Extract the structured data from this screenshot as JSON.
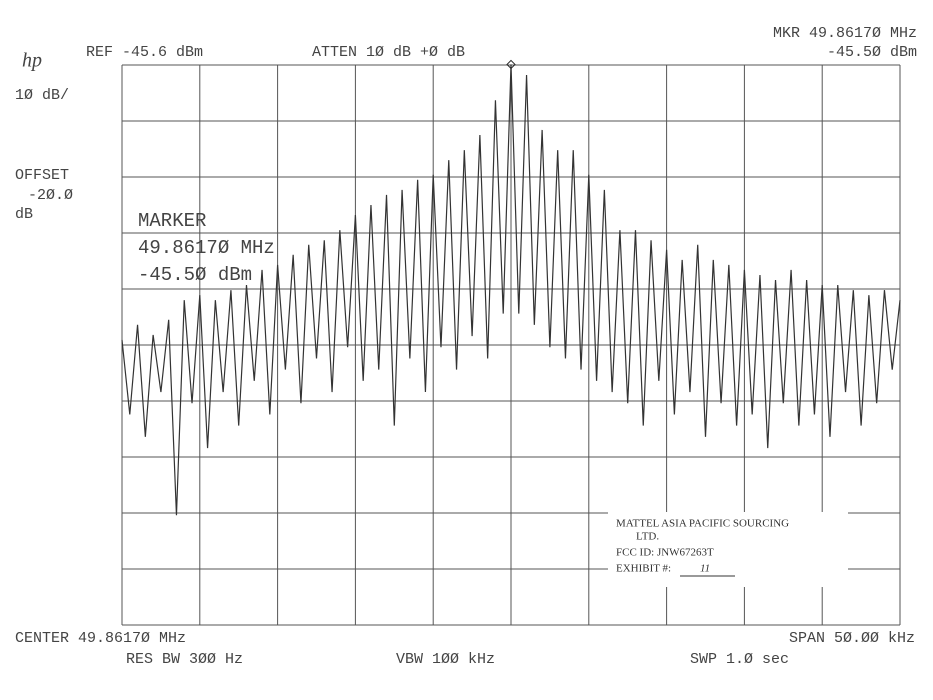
{
  "chart_data": {
    "type": "line",
    "logo": "hp",
    "reference": "REF -45.6 dBm",
    "attenuation": "ATTEN 1Ø dB +Ø dB",
    "marker_readout": "MKR 49.8617Ø MHz",
    "marker_level": "-45.5Ø dBm",
    "scale": "1Ø dB/",
    "offset_label": "OFFSET",
    "offset_value": "-2Ø.Ø",
    "offset_unit": "dB",
    "marker_title": "MARKER",
    "marker_freq": "49.8617Ø MHz",
    "marker_amp": "-45.5Ø dBm",
    "center": "CENTER 49.8617Ø MHz",
    "res_bw": "RES BW 3ØØ Hz",
    "vbw": "VBW 1ØØ kHz",
    "span": "SPAN 5Ø.ØØ kHz",
    "sweep": "SWP 1.Ø sec",
    "stamp": [
      "MATTEL ASIA PACIFIC SOURCING",
      "LTD.",
      "FCC ID: JNW67263T",
      "EXHIBIT #:",
      "11"
    ],
    "xlim": [
      49.8367,
      49.8867
    ],
    "ylim": [
      -145.6,
      -45.6
    ],
    "color": "#333333",
    "x": [
      49.8367,
      49.8372,
      49.8377,
      49.8382,
      49.8387,
      49.8392,
      49.8397,
      49.8402,
      49.8407,
      49.8412,
      49.8417,
      49.8422,
      49.8427,
      49.8432,
      49.8437,
      49.8442,
      49.8447,
      49.8452,
      49.8457,
      49.8462,
      49.8467,
      49.8472,
      49.8477,
      49.8482,
      49.8487,
      49.8492,
      49.8497,
      49.8502,
      49.8507,
      49.8512,
      49.8517,
      49.8522,
      49.8527,
      49.8532,
      49.8537,
      49.8542,
      49.8547,
      49.8552,
      49.8557,
      49.8562,
      49.8567,
      49.8572,
      49.8577,
      49.8582,
      49.8587,
      49.8592,
      49.8597,
      49.8602,
      49.8607,
      49.8612,
      49.8617,
      49.8622,
      49.8627,
      49.8632,
      49.8637,
      49.8642,
      49.8647,
      49.8652,
      49.8657,
      49.8662,
      49.8667,
      49.8672,
      49.8677,
      49.8682,
      49.8687,
      49.8692,
      49.8697,
      49.8702,
      49.8707,
      49.8712,
      49.8717,
      49.8722,
      49.8727,
      49.8732,
      49.8737,
      49.8742,
      49.8747,
      49.8752,
      49.8757,
      49.8762,
      49.8767,
      49.8772,
      49.8777,
      49.8782,
      49.8787,
      49.8792,
      49.8797,
      49.8802,
      49.8807,
      49.8812,
      49.8817,
      49.8822,
      49.8827,
      49.8832,
      49.8837,
      49.8842,
      49.8847,
      49.8852,
      49.8857,
      49.8862,
      49.8867
    ],
    "values": [
      -94.7,
      -108,
      -92.0,
      -112,
      -93.8,
      -104,
      -91.1,
      -126,
      -87.6,
      -106,
      -86.7,
      -114,
      -87.6,
      -104,
      -85.8,
      -110,
      -84.9,
      -102,
      -82.2,
      -108,
      -81.3,
      -100,
      -79.5,
      -106,
      -77.7,
      -98,
      -76.9,
      -104,
      -75.1,
      -96,
      -72.4,
      -102,
      -70.6,
      -100,
      -68.8,
      -110,
      -67.9,
      -98,
      -66.1,
      -104,
      -65.2,
      -96,
      -62.6,
      -100,
      -60.8,
      -94,
      -58.1,
      -98,
      -51.9,
      -90,
      -45.5,
      -90,
      -47.4,
      -92,
      -57.2,
      -96,
      -60.8,
      -98,
      -60.8,
      -100,
      -65.2,
      -102,
      -67.9,
      -104,
      -75.1,
      -106,
      -75.1,
      -110,
      -76.9,
      -102,
      -78.6,
      -108,
      -80.4,
      -104,
      -77.7,
      -112,
      -80.4,
      -106,
      -81.3,
      -110,
      -82.2,
      -108,
      -83.1,
      -114,
      -84.0,
      -106,
      -82.2,
      -110,
      -84.0,
      -108,
      -84.9,
      -112,
      -84.9,
      -104,
      -85.8,
      -110,
      -86.7,
      -106,
      -85.8,
      -100,
      -87.6
    ]
  }
}
